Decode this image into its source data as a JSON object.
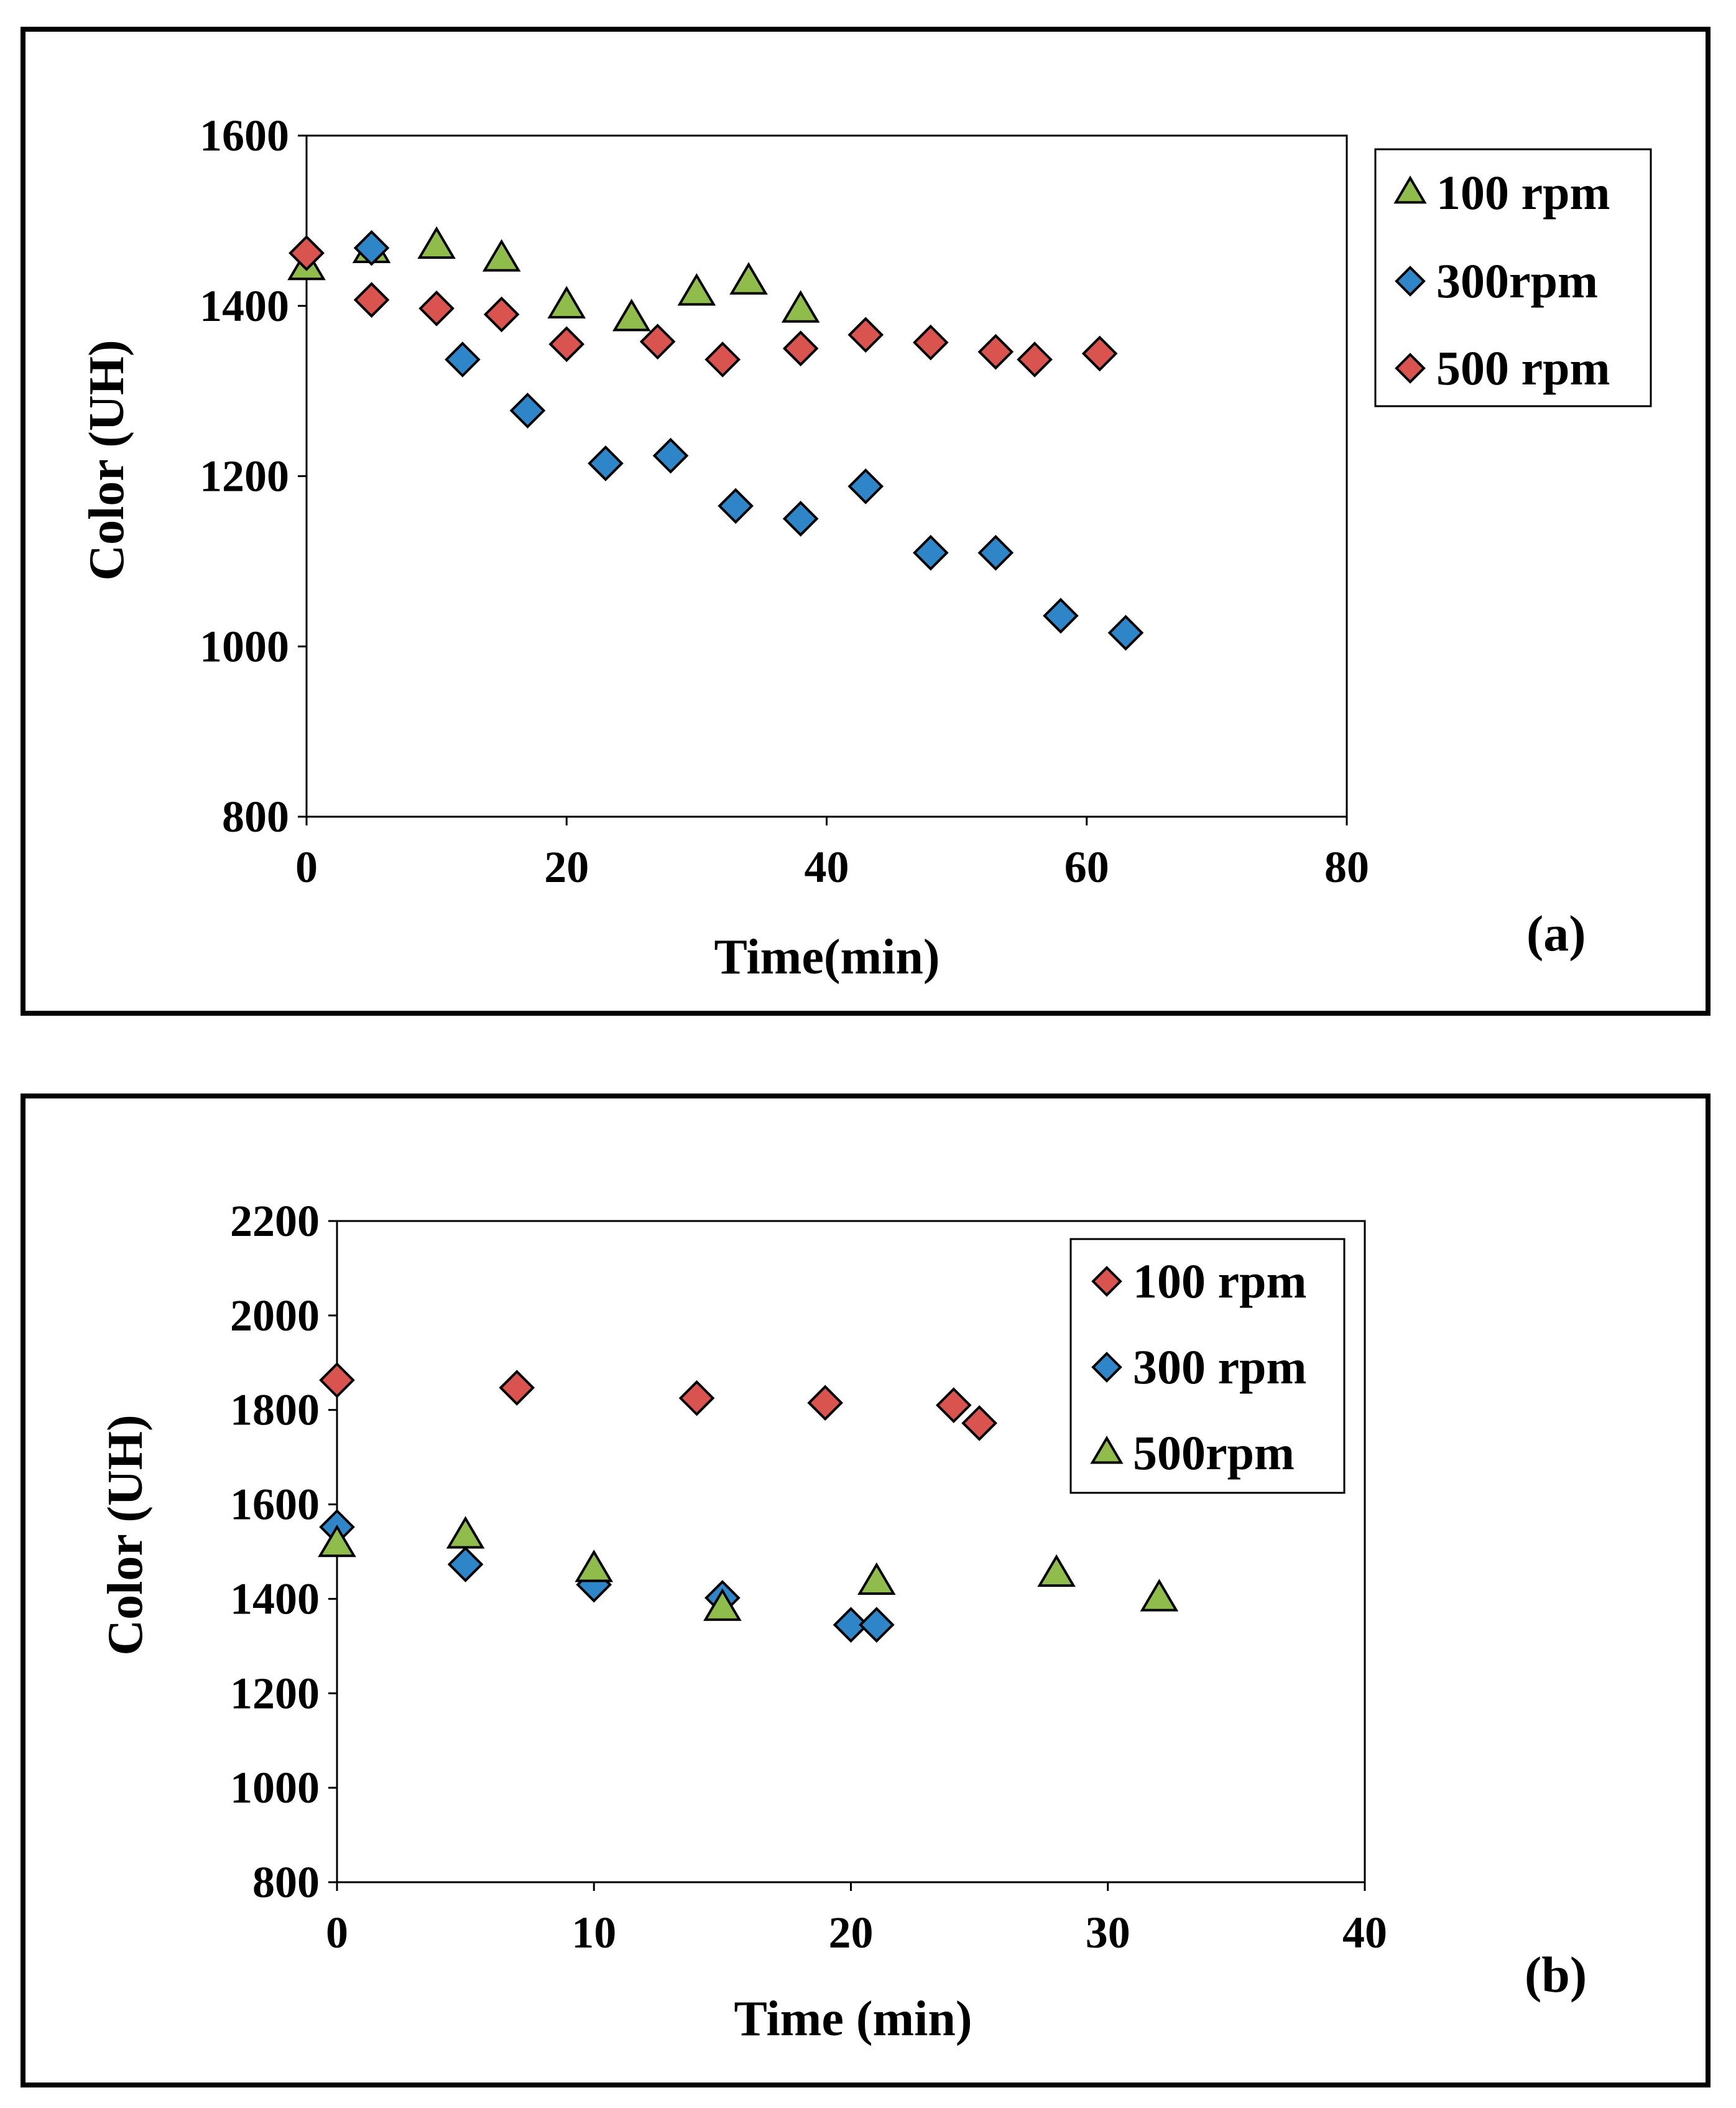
{
  "colors": {
    "red": "#d9534f",
    "blue": "#2e86c8",
    "green": "#8fbc4a",
    "stroke": "#000000"
  },
  "chart_data": [
    {
      "type": "scatter",
      "panel_label": "(a)",
      "title": "",
      "xlabel": "Time(min)",
      "ylabel": "Color (UH)",
      "xlim": [
        0,
        80
      ],
      "ylim": [
        800,
        1600
      ],
      "xticks": [
        0,
        20,
        40,
        60,
        80
      ],
      "yticks": [
        800,
        1000,
        1200,
        1400,
        1600
      ],
      "grid": false,
      "legend_position": "right",
      "series": [
        {
          "name": "100 rpm",
          "marker": "triangle",
          "color": "#8fbc4a",
          "points": [
            [
              0,
              1445
            ],
            [
              5,
              1465
            ],
            [
              10,
              1470
            ],
            [
              15,
              1455
            ],
            [
              20,
              1400
            ],
            [
              25,
              1385
            ],
            [
              30,
              1415
            ],
            [
              34,
              1428
            ],
            [
              38,
              1395
            ]
          ]
        },
        {
          "name": "300rpm",
          "marker": "diamond",
          "color": "#2e86c8",
          "points": [
            [
              0,
              1462
            ],
            [
              5,
              1468
            ],
            [
              12,
              1337
            ],
            [
              17,
              1277
            ],
            [
              23,
              1215
            ],
            [
              28,
              1224
            ],
            [
              33,
              1165
            ],
            [
              38,
              1150
            ],
            [
              43,
              1188
            ],
            [
              48,
              1110
            ],
            [
              53,
              1110
            ],
            [
              58,
              1036
            ],
            [
              63,
              1016
            ]
          ]
        },
        {
          "name": "500 rpm",
          "marker": "diamond",
          "color": "#d9534f",
          "points": [
            [
              0,
              1462
            ],
            [
              5,
              1407
            ],
            [
              10,
              1397
            ],
            [
              15,
              1390
            ],
            [
              20,
              1355
            ],
            [
              27,
              1358
            ],
            [
              32,
              1337
            ],
            [
              38,
              1350
            ],
            [
              43,
              1366
            ],
            [
              48,
              1357
            ],
            [
              53,
              1346
            ],
            [
              56,
              1337
            ],
            [
              61,
              1344
            ]
          ]
        }
      ]
    },
    {
      "type": "scatter",
      "panel_label": "(b)",
      "title": "",
      "xlabel": "Time (min)",
      "ylabel": "Color (UH)",
      "xlim": [
        0,
        40
      ],
      "ylim": [
        800,
        2200
      ],
      "xticks": [
        0,
        10,
        20,
        30,
        40
      ],
      "yticks": [
        800,
        1000,
        1200,
        1400,
        1600,
        1800,
        2000,
        2200
      ],
      "grid": false,
      "legend_position": "top-right",
      "series": [
        {
          "name": "100 rpm",
          "marker": "diamond",
          "color": "#d9534f",
          "points": [
            [
              0,
              1863
            ],
            [
              7,
              1847
            ],
            [
              14,
              1825
            ],
            [
              19,
              1815
            ],
            [
              24,
              1810
            ],
            [
              25,
              1772
            ]
          ]
        },
        {
          "name": "300 rpm",
          "marker": "diamond",
          "color": "#2e86c8",
          "points": [
            [
              0,
              1552
            ],
            [
              5,
              1473
            ],
            [
              10,
              1430
            ],
            [
              15,
              1402
            ],
            [
              20,
              1345
            ],
            [
              21,
              1345
            ]
          ]
        },
        {
          "name": "500rpm",
          "marker": "triangle",
          "color": "#8fbc4a",
          "points": [
            [
              0,
              1515
            ],
            [
              5,
              1533
            ],
            [
              10,
              1462
            ],
            [
              15,
              1380
            ],
            [
              21,
              1435
            ],
            [
              28,
              1452
            ],
            [
              32,
              1400
            ]
          ]
        }
      ]
    }
  ]
}
